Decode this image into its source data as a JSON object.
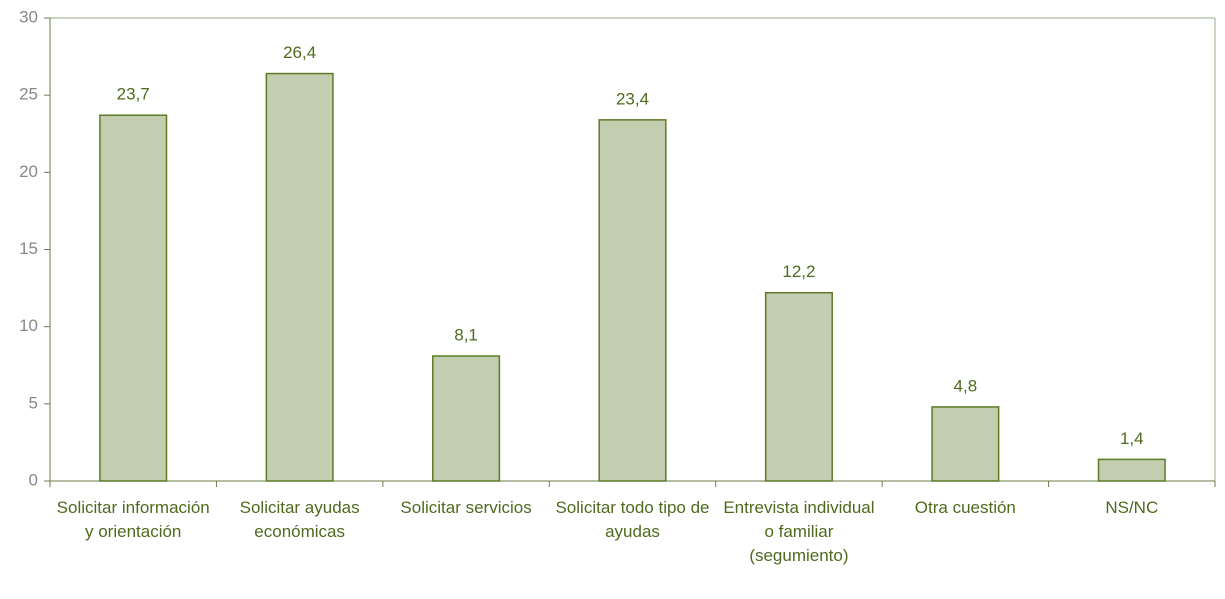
{
  "chart_data": {
    "type": "bar",
    "categories": [
      "Solicitar información y orientación",
      "Solicitar ayudas económicas",
      "Solicitar servicios",
      "Solicitar todo tipo de ayudas",
      "Entrevista individual o familiar (segumiento)",
      "Otra cuestión",
      "NS/NC"
    ],
    "values": [
      23.7,
      26.4,
      8.1,
      23.4,
      12.2,
      4.8,
      1.4
    ],
    "value_labels": [
      "23,7",
      "26,4",
      "8,1",
      "23,4",
      "12,2",
      "4,8",
      "1,4"
    ],
    "color": "#c3ceb0",
    "ylim": [
      0,
      30
    ],
    "yticks": [
      0,
      5,
      10,
      15,
      20,
      25,
      30
    ]
  }
}
